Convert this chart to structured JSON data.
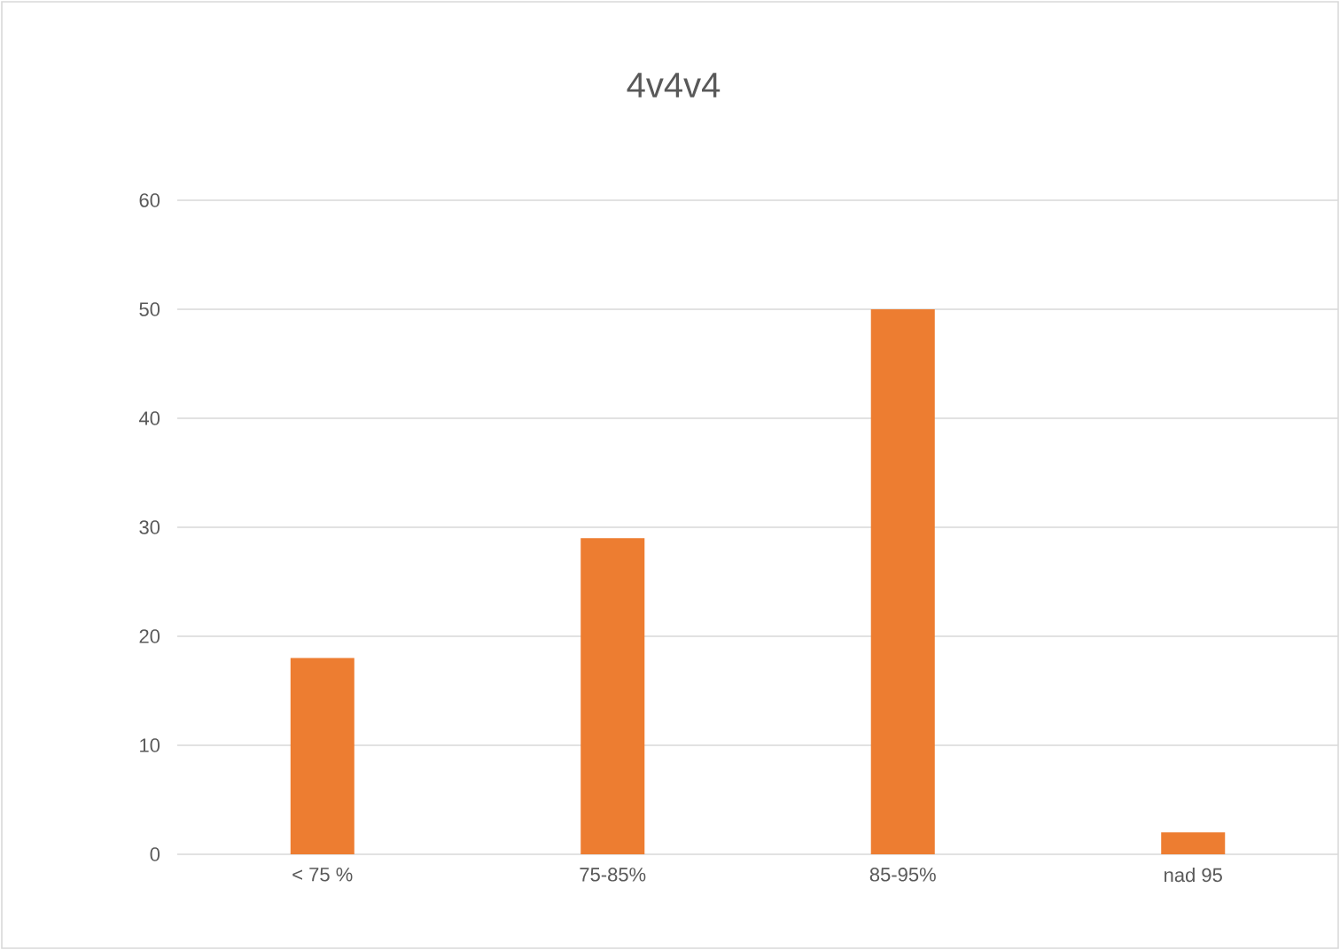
{
  "chart_data": {
    "type": "bar",
    "title": "4v4v4",
    "categories": [
      "< 75 %",
      "75-85%",
      "85-95%",
      "nad 95"
    ],
    "values": [
      18,
      29,
      50,
      2
    ],
    "color": "#ed7d31",
    "ylim": [
      0,
      60
    ],
    "yticks": [
      0,
      10,
      20,
      30,
      40,
      50,
      60
    ],
    "grid": "y"
  }
}
